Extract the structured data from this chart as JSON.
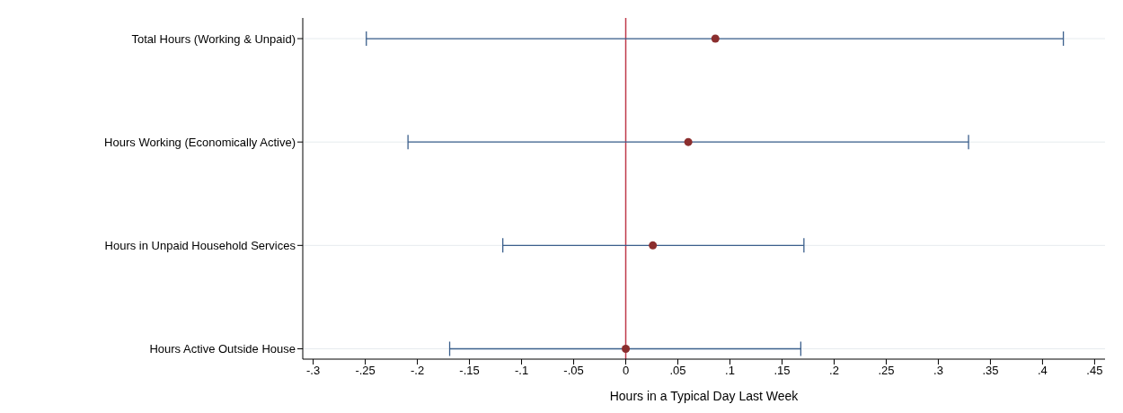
{
  "chart_data": {
    "type": "scatter",
    "orientation": "horizontal",
    "xlabel": "Hours in a Typical Day Last Week",
    "categories": [
      "Total Hours (Working & Unpaid)",
      "Hours Working (Economically Active)",
      "Hours in Unpaid Household Services",
      "Hours Active Outside House"
    ],
    "series": [
      {
        "color": "#8b2e2e",
        "values": [
          0.086,
          0.06,
          0.026,
          0.0
        ],
        "errors": [
          [
            -0.249,
            0.42
          ],
          [
            -0.209,
            0.329
          ],
          [
            -0.118,
            0.171
          ],
          [
            -0.169,
            0.168
          ]
        ]
      }
    ],
    "xlim": [
      -0.31,
      0.46
    ],
    "xticks": [
      {
        "value": -0.3,
        "label": "-.3"
      },
      {
        "value": -0.25,
        "label": "-.25"
      },
      {
        "value": -0.2,
        "label": "-.2"
      },
      {
        "value": -0.15,
        "label": "-.15"
      },
      {
        "value": -0.1,
        "label": "-.1"
      },
      {
        "value": -0.05,
        "label": "-.05"
      },
      {
        "value": 0,
        "label": "0"
      },
      {
        "value": 0.05,
        "label": ".05"
      },
      {
        "value": 0.1,
        "label": ".1"
      },
      {
        "value": 0.15,
        "label": ".15"
      },
      {
        "value": 0.2,
        "label": ".2"
      },
      {
        "value": 0.25,
        "label": ".25"
      },
      {
        "value": 0.3,
        "label": ".3"
      },
      {
        "value": 0.35,
        "label": ".35"
      },
      {
        "value": 0.4,
        "label": ".4"
      },
      {
        "value": 0.45,
        "label": ".45"
      }
    ],
    "ref_lines": [
      {
        "axis": "x",
        "value": 0,
        "color": "#c0394b"
      }
    ],
    "grid": "y",
    "legend": false,
    "marker": "circle"
  }
}
